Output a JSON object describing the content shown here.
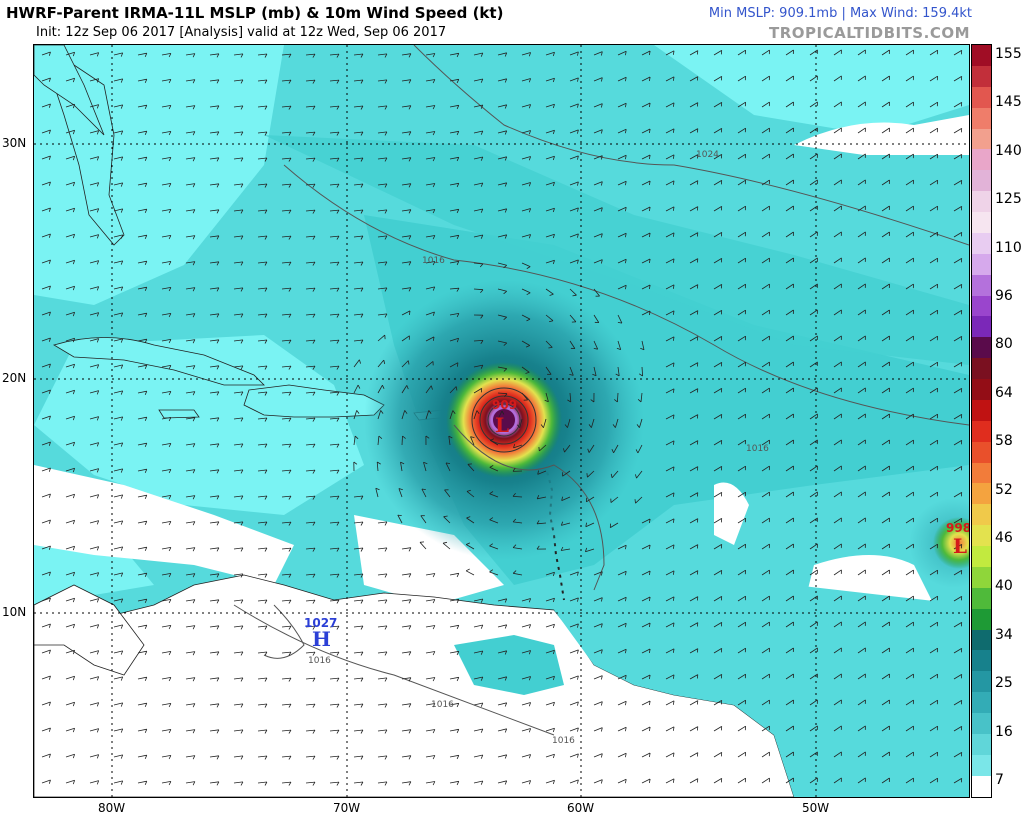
{
  "header": {
    "title": "HWRF-Parent IRMA-11L MSLP (mb) & 10m Wind Speed (kt)",
    "subtitle": "Init: 12z Sep 06 2017   [Analysis]   valid at 12z Wed, Sep 06 2017",
    "stats": "Min MSLP: 909.1mb  |  Max Wind: 159.4kt",
    "brand": "TROPICALTIDBITS.COM"
  },
  "map": {
    "lat_labels": [
      "30N",
      "20N",
      "10N"
    ],
    "lon_labels": [
      "80W",
      "70W",
      "60W",
      "50W"
    ],
    "pressure_centers": [
      {
        "type": "L",
        "value": "909",
        "color": "#d41a1a"
      },
      {
        "type": "H",
        "value": "1027",
        "color": "#2b3fd6"
      },
      {
        "type": "L",
        "value": "998",
        "color": "#d41a1a"
      }
    ],
    "isobar_labels": [
      "1024",
      "1016",
      "1016",
      "1016",
      "1016",
      "1016"
    ],
    "colors": {
      "land": "#ffffff",
      "calm": "#7af3f3",
      "low_wind": "#43cfd1",
      "moderate_wind": "#1e8f9c"
    }
  },
  "colorbar": {
    "labels": [
      "155",
      "145",
      "140",
      "125",
      "110",
      "96",
      "80",
      "64",
      "58",
      "52",
      "46",
      "40",
      "34",
      "25",
      "16",
      "7"
    ],
    "colors": [
      "#a00d25",
      "#c22f3a",
      "#e2574f",
      "#ef7d6a",
      "#f2a08e",
      "#e9a6c9",
      "#e2b3d8",
      "#efd3e8",
      "#f6e5f0",
      "#e8ccf1",
      "#d6a9ec",
      "#b471dc",
      "#9a45cd",
      "#7b28b8",
      "#5a0b4b",
      "#7a1020",
      "#930d16",
      "#c01212",
      "#e02d1e",
      "#e9502b",
      "#f27c3a",
      "#f4a33f",
      "#f0c94a",
      "#e3e24e",
      "#c2ea3f",
      "#8fd63a",
      "#4fba3a",
      "#1e9a35",
      "#0f6b6e",
      "#17818c",
      "#2497a3",
      "#33acb6",
      "#48c2c8",
      "#60d6d9",
      "#7ae6e8",
      "#ffffff"
    ]
  }
}
